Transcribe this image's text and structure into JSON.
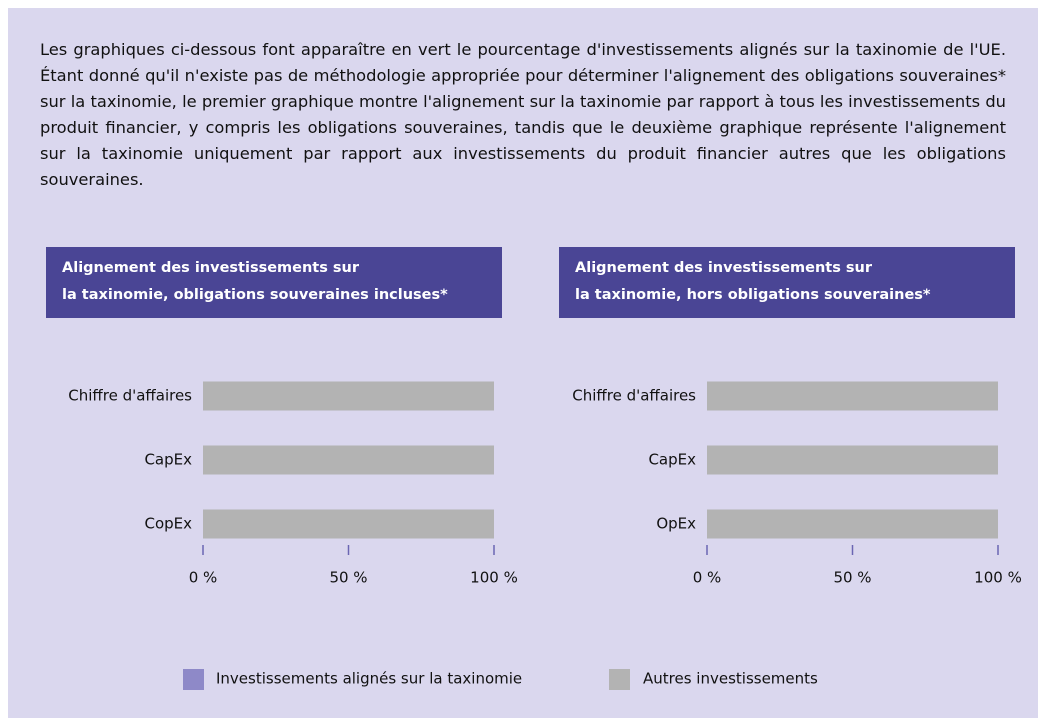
{
  "intro": "Les graphiques ci-dessous font apparaître en vert le pourcentage d'investissements alignés sur la taxinomie de l'UE. Étant donné qu'il n'existe pas de méthodologie appropriée pour déterminer l'alignement des obligations souveraines* sur la taxinomie, le premier graphique montre l'alignement sur la taxinomie par rapport à tous les investissements du produit financier, y compris les obligations souveraines, tandis que le deuxième graphique représente l'alignement sur la taxinomie uniquement par rapport aux investissements du produit financier autres que les obligations souveraines.",
  "chart_data": [
    {
      "type": "hbar_stacked",
      "title_lines": [
        "Alignement des investissements sur",
        "la taxinomie, obligations souveraines incluses*"
      ],
      "categories": [
        "Chiffre d'affaires",
        "CapEx",
        "CopEx"
      ],
      "series": [
        {
          "name": "Investissements alignés sur la taxinomie",
          "color": "#8e89c8",
          "values": [
            0,
            0,
            0
          ]
        },
        {
          "name": "Autres investissements",
          "color": "#b3b3b3",
          "values": [
            100,
            100,
            100
          ]
        }
      ],
      "xlim": [
        0,
        100
      ],
      "xticks": [
        {
          "value": 0,
          "label": "0 %"
        },
        {
          "value": 50,
          "label": "50 %"
        },
        {
          "value": 100,
          "label": "100 %"
        }
      ]
    },
    {
      "type": "hbar_stacked",
      "title_lines": [
        "Alignement des investissements sur",
        "la taxinomie, hors obligations souveraines*"
      ],
      "categories": [
        "Chiffre d'affaires",
        "CapEx",
        "OpEx"
      ],
      "series": [
        {
          "name": "Investissements alignés sur la taxinomie",
          "color": "#8e89c8",
          "values": [
            0,
            0,
            0
          ]
        },
        {
          "name": "Autres investissements",
          "color": "#b3b3b3",
          "values": [
            100,
            100,
            100
          ]
        }
      ],
      "xlim": [
        0,
        100
      ],
      "xticks": [
        {
          "value": 0,
          "label": "0 %"
        },
        {
          "value": 50,
          "label": "50 %"
        },
        {
          "value": 100,
          "label": "100 %"
        }
      ]
    }
  ]
}
